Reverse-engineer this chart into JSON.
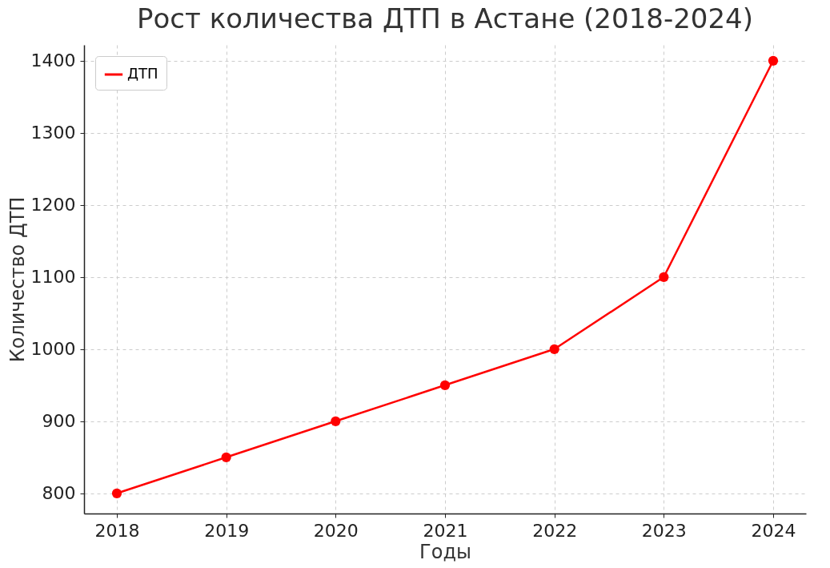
{
  "chart_data": {
    "type": "line",
    "title": "Рост количества ДТП в Астане (2018-2024)",
    "xlabel": "Годы",
    "ylabel": "Количество ДТП",
    "x": [
      2018,
      2019,
      2020,
      2021,
      2022,
      2023,
      2024
    ],
    "series": [
      {
        "name": "ДТП",
        "color": "#ff0000",
        "values": [
          800,
          850,
          900,
          950,
          1000,
          1100,
          1400
        ]
      }
    ],
    "xlim": [
      2017.7,
      2024.3
    ],
    "xticks": [
      2018,
      2019,
      2020,
      2021,
      2022,
      2023,
      2024
    ],
    "ylim": [
      772,
      1422
    ],
    "yticks": [
      800,
      900,
      1000,
      1100,
      1200,
      1300,
      1400
    ],
    "grid": true,
    "legend": "top left",
    "marker": "circle",
    "line_style": "solid"
  }
}
